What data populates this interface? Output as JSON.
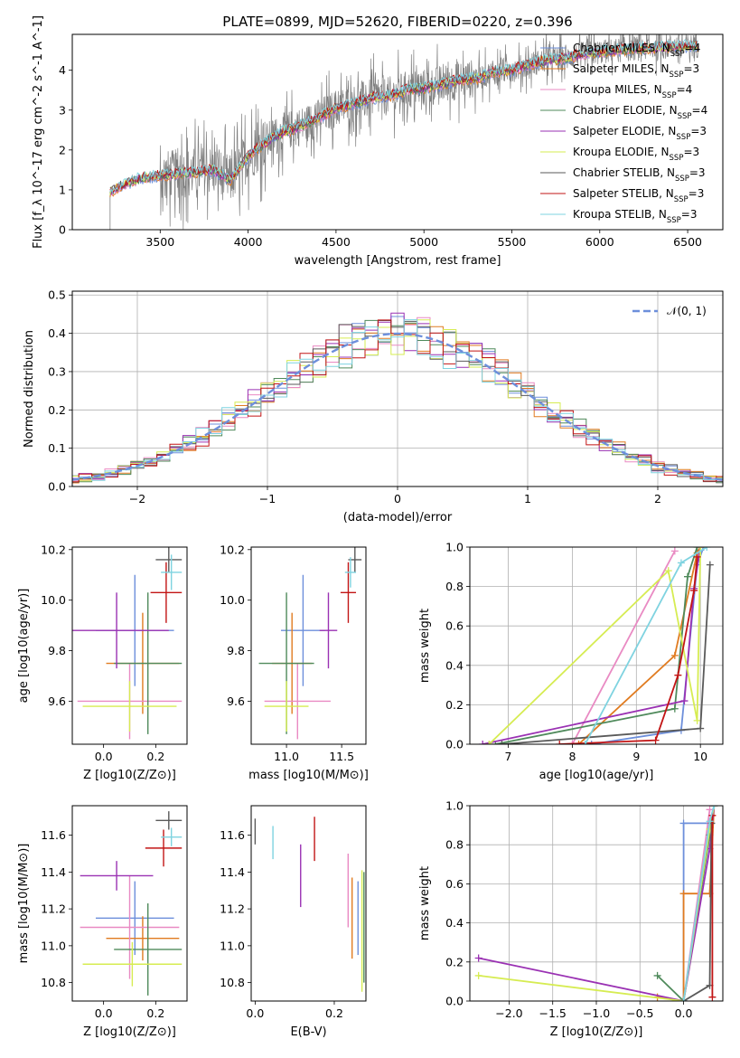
{
  "figure_title": "PLATE=0899, MJD=52620, FIBERID=0220, z=0.396",
  "models": [
    {
      "name": "Chabrier MILES",
      "nssp": "4",
      "color": "#6d8fdb"
    },
    {
      "name": "Salpeter MILES",
      "nssp": "3",
      "color": "#e07b20"
    },
    {
      "name": "Kroupa MILES",
      "nssp": "4",
      "color": "#e98ac3"
    },
    {
      "name": "Chabrier ELODIE",
      "nssp": "4",
      "color": "#4f8a5b"
    },
    {
      "name": "Salpeter ELODIE",
      "nssp": "3",
      "color": "#9a31b3"
    },
    {
      "name": "Kroupa ELODIE",
      "nssp": "3",
      "color": "#d6ec52"
    },
    {
      "name": "Chabrier STELIB",
      "nssp": "3",
      "color": "#5a5a5a"
    },
    {
      "name": "Salpeter STELIB",
      "nssp": "3",
      "color": "#c21515"
    },
    {
      "name": "Kroupa STELIB",
      "nssp": "3",
      "color": "#7fd3e0"
    }
  ],
  "chart_data": [
    {
      "id": "spectrum",
      "type": "line",
      "xlabel": "wavelength [Angstrom, rest frame]",
      "ylabel": "Flux [f_λ 10^-17 erg cm^-2 s^-1 A^-1]",
      "xlim": [
        3000,
        6700
      ],
      "ylim": [
        0,
        4.9
      ],
      "xticks": [
        3500,
        4000,
        4500,
        5000,
        5500,
        6000,
        6500
      ],
      "yticks": [
        0,
        1,
        2,
        3,
        4
      ],
      "data_color": "#808080",
      "data_xrange": [
        3215,
        6560
      ],
      "continuum": [
        [
          3215,
          0.95
        ],
        [
          3300,
          1.15
        ],
        [
          3400,
          1.3
        ],
        [
          3500,
          1.35
        ],
        [
          3600,
          1.4
        ],
        [
          3700,
          1.45
        ],
        [
          3800,
          1.5
        ],
        [
          3900,
          1.25
        ],
        [
          4000,
          1.85
        ],
        [
          4100,
          2.2
        ],
        [
          4200,
          2.45
        ],
        [
          4300,
          2.6
        ],
        [
          4400,
          2.8
        ],
        [
          4500,
          3.05
        ],
        [
          4600,
          3.15
        ],
        [
          4700,
          3.3
        ],
        [
          4800,
          3.35
        ],
        [
          4900,
          3.5
        ],
        [
          5000,
          3.55
        ],
        [
          5100,
          3.65
        ],
        [
          5200,
          3.75
        ],
        [
          5300,
          3.8
        ],
        [
          5400,
          3.95
        ],
        [
          5500,
          4.0
        ],
        [
          5600,
          4.15
        ],
        [
          5700,
          4.25
        ],
        [
          5800,
          4.3
        ],
        [
          5900,
          4.4
        ],
        [
          6000,
          4.45
        ],
        [
          6100,
          4.5
        ],
        [
          6200,
          4.55
        ],
        [
          6300,
          4.55
        ],
        [
          6400,
          4.6
        ],
        [
          6500,
          4.6
        ],
        [
          6560,
          4.6
        ]
      ],
      "legend": "upper right",
      "grid": false
    },
    {
      "id": "residuals",
      "type": "step",
      "xlabel": "(data-model)/error",
      "ylabel": "Normed distribution",
      "xlim": [
        -2.5,
        2.5
      ],
      "ylim": [
        0,
        0.51
      ],
      "xticks": [
        -2,
        -1,
        0,
        1,
        2
      ],
      "yticks": [
        0.0,
        0.1,
        0.2,
        0.3,
        0.4,
        0.5
      ],
      "ytick_labels": [
        "0.0",
        "0.1",
        "0.2",
        "0.3",
        "0.4",
        "0.5"
      ],
      "xtick_labels": [
        "−2",
        "−1",
        "0",
        "1",
        "2"
      ],
      "bin_width": 0.1,
      "reference_curve": {
        "name": "𝒩(0, 1)",
        "type": "gaussian",
        "mean": 0,
        "sigma": 1,
        "color": "#6d8fdb"
      },
      "legend": "upper right",
      "grid": true
    },
    {
      "id": "age-vs-Z",
      "type": "errorbar",
      "xlabel": "Z [log10(Z/Z⊙)]",
      "ylabel": "age [log10(age/yr)]",
      "xlim": [
        -0.12,
        0.32
      ],
      "ylim": [
        9.43,
        10.21
      ],
      "xticks": [
        0.0,
        0.2
      ],
      "yticks": [
        9.6,
        9.8,
        10.0,
        10.2
      ],
      "xtick_labels": [
        "0.0",
        "0.2"
      ],
      "ytick_labels": [
        "9.6",
        "9.8",
        "10.0",
        "10.2"
      ],
      "points": [
        {
          "model": 0,
          "x": 0.12,
          "xerr": 0.15,
          "y": 9.88,
          "yerr": 0.22
        },
        {
          "model": 1,
          "x": 0.15,
          "xerr": 0.14,
          "y": 9.75,
          "yerr": 0.2
        },
        {
          "model": 2,
          "x": 0.1,
          "xerr": 0.2,
          "y": 9.6,
          "yerr": 0.15
        },
        {
          "model": 3,
          "x": 0.17,
          "xerr": 0.13,
          "y": 9.75,
          "yerr": 0.28
        },
        {
          "model": 4,
          "x": 0.05,
          "xerr": 0.2,
          "y": 9.88,
          "yerr": 0.15
        },
        {
          "model": 5,
          "x": 0.1,
          "xerr": 0.18,
          "y": 9.58,
          "yerr": 0.1
        },
        {
          "model": 6,
          "x": 0.25,
          "xerr": 0.05,
          "y": 10.16,
          "yerr": 0.05
        },
        {
          "model": 7,
          "x": 0.24,
          "xerr": 0.06,
          "y": 10.03,
          "yerr": 0.12
        },
        {
          "model": 8,
          "x": 0.26,
          "xerr": 0.04,
          "y": 10.11,
          "yerr": 0.07
        }
      ]
    },
    {
      "id": "age-vs-mass",
      "type": "errorbar",
      "xlabel": "mass [log10(M/M⊙)]",
      "ylabel": "",
      "xlim": [
        10.68,
        11.72
      ],
      "ylim": [
        9.43,
        10.21
      ],
      "xticks": [
        11.0,
        11.5
      ],
      "yticks": [
        9.6,
        9.8,
        10.0,
        10.2
      ],
      "xtick_labels": [
        "11.0",
        "11.5"
      ],
      "ytick_labels": [
        "9.6",
        "9.8",
        "10.0",
        "10.2"
      ],
      "points": [
        {
          "model": 0,
          "x": 11.15,
          "xerr": 0.2,
          "y": 9.88,
          "yerr": 0.22
        },
        {
          "model": 1,
          "x": 11.05,
          "xerr": 0.18,
          "y": 9.75,
          "yerr": 0.2
        },
        {
          "model": 2,
          "x": 11.1,
          "xerr": 0.3,
          "y": 9.6,
          "yerr": 0.15
        },
        {
          "model": 3,
          "x": 11.0,
          "xerr": 0.25,
          "y": 9.75,
          "yerr": 0.28
        },
        {
          "model": 4,
          "x": 11.38,
          "xerr": 0.08,
          "y": 9.88,
          "yerr": 0.15
        },
        {
          "model": 5,
          "x": 11.0,
          "xerr": 0.2,
          "y": 9.58,
          "yerr": 0.1
        },
        {
          "model": 6,
          "x": 11.62,
          "xerr": 0.06,
          "y": 10.16,
          "yerr": 0.05
        },
        {
          "model": 7,
          "x": 11.56,
          "xerr": 0.07,
          "y": 10.03,
          "yerr": 0.12
        },
        {
          "model": 8,
          "x": 11.58,
          "xerr": 0.05,
          "y": 10.11,
          "yerr": 0.06
        }
      ]
    },
    {
      "id": "cumulative-age",
      "type": "line",
      "xlabel": "age [log10(age/yr)]",
      "ylabel": "mass weight",
      "xlim": [
        6.4,
        10.35
      ],
      "ylim": [
        0,
        1.0
      ],
      "xticks": [
        7,
        8,
        9,
        10
      ],
      "yticks": [
        0.0,
        0.2,
        0.4,
        0.6,
        0.8,
        1.0
      ],
      "ytick_labels": [
        "0.0",
        "0.2",
        "0.4",
        "0.6",
        "0.8",
        "1.0"
      ],
      "xtick_labels": [
        "7",
        "8",
        "9",
        "10"
      ],
      "grid": true,
      "series": [
        {
          "model": 0,
          "points": [
            [
              8.3,
              0.0
            ],
            [
              9.7,
              0.07
            ],
            [
              9.95,
              0.91
            ],
            [
              10.05,
              1.0
            ]
          ]
        },
        {
          "model": 1,
          "points": [
            [
              8.1,
              0.0
            ],
            [
              9.6,
              0.45
            ],
            [
              9.95,
              0.97
            ],
            [
              10.0,
              1.0
            ]
          ]
        },
        {
          "model": 2,
          "points": [
            [
              8.0,
              0.0
            ],
            [
              9.6,
              0.98
            ]
          ]
        },
        {
          "model": 3,
          "points": [
            [
              6.8,
              0.0
            ],
            [
              9.6,
              0.18
            ],
            [
              9.8,
              0.85
            ],
            [
              9.95,
              1.0
            ]
          ]
        },
        {
          "model": 4,
          "points": [
            [
              6.6,
              0.0
            ],
            [
              9.75,
              0.22
            ],
            [
              9.9,
              0.79
            ],
            [
              10.0,
              1.0
            ]
          ]
        },
        {
          "model": 5,
          "points": [
            [
              6.7,
              0.0
            ],
            [
              9.5,
              0.88
            ],
            [
              9.95,
              0.12
            ],
            [
              10.0,
              1.0
            ]
          ]
        },
        {
          "model": 6,
          "points": [
            [
              6.9,
              0.0
            ],
            [
              10.0,
              0.08
            ],
            [
              10.15,
              0.91
            ]
          ]
        },
        {
          "model": 7,
          "points": [
            [
              7.8,
              0.0
            ],
            [
              9.3,
              0.02
            ],
            [
              9.65,
              0.35
            ],
            [
              9.9,
              0.78
            ],
            [
              9.95,
              0.95
            ]
          ]
        },
        {
          "model": 8,
          "points": [
            [
              8.2,
              0.0
            ],
            [
              9.7,
              0.92
            ],
            [
              10.1,
              1.0
            ]
          ]
        }
      ]
    },
    {
      "id": "mass-vs-Z",
      "type": "errorbar",
      "xlabel": "Z [log10(Z/Z⊙)]",
      "ylabel": "mass [log10(M/M⊙)]",
      "xlim": [
        -0.12,
        0.32
      ],
      "ylim": [
        10.7,
        11.76
      ],
      "xticks": [
        0.0,
        0.2
      ],
      "yticks": [
        10.8,
        11.0,
        11.2,
        11.4,
        11.6
      ],
      "xtick_labels": [
        "0.0",
        "0.2"
      ],
      "ytick_labels": [
        "10.8",
        "11.0",
        "11.2",
        "11.4",
        "11.6"
      ],
      "points": [
        {
          "model": 0,
          "x": 0.12,
          "xerr": 0.15,
          "y": 11.15,
          "yerr": 0.2
        },
        {
          "model": 1,
          "x": 0.15,
          "xerr": 0.14,
          "y": 11.04,
          "yerr": 0.12
        },
        {
          "model": 2,
          "x": 0.1,
          "xerr": 0.19,
          "y": 11.1,
          "yerr": 0.28
        },
        {
          "model": 3,
          "x": 0.17,
          "xerr": 0.13,
          "y": 10.98,
          "yerr": 0.25
        },
        {
          "model": 4,
          "x": 0.05,
          "xerr": 0.14,
          "y": 11.38,
          "yerr": 0.08
        },
        {
          "model": 5,
          "x": 0.11,
          "xerr": 0.19,
          "y": 10.9,
          "yerr": 0.12
        },
        {
          "model": 6,
          "x": 0.25,
          "xerr": 0.05,
          "y": 11.68,
          "yerr": 0.05
        },
        {
          "model": 7,
          "x": 0.23,
          "xerr": 0.07,
          "y": 11.53,
          "yerr": 0.1
        },
        {
          "model": 8,
          "x": 0.26,
          "xerr": 0.04,
          "y": 11.59,
          "yerr": 0.05
        }
      ]
    },
    {
      "id": "mass-vs-EBV",
      "type": "errorbar",
      "xlabel": "E(B-V)",
      "ylabel": "",
      "xlim": [
        -0.01,
        0.28
      ],
      "ylim": [
        10.7,
        11.76
      ],
      "xticks": [
        0.0,
        0.2
      ],
      "yticks": [
        10.8,
        11.0,
        11.2,
        11.4,
        11.6
      ],
      "xtick_labels": [
        "0.0",
        "0.2"
      ],
      "ytick_labels": [
        "10.8",
        "11.0",
        "11.2",
        "11.4",
        "11.6"
      ],
      "points": [
        {
          "model": 0,
          "x": 0.26,
          "xerr": 0.0,
          "y": 11.15,
          "yerr": 0.2
        },
        {
          "model": 1,
          "x": 0.245,
          "xerr": 0.0,
          "y": 11.15,
          "yerr": 0.22
        },
        {
          "model": 2,
          "x": 0.235,
          "xerr": 0.0,
          "y": 11.3,
          "yerr": 0.2
        },
        {
          "model": 3,
          "x": 0.275,
          "xerr": 0.0,
          "y": 11.1,
          "yerr": 0.3
        },
        {
          "model": 4,
          "x": 0.115,
          "xerr": 0.0,
          "y": 11.38,
          "yerr": 0.17
        },
        {
          "model": 5,
          "x": 0.27,
          "xerr": 0.0,
          "y": 11.08,
          "yerr": 0.33
        },
        {
          "model": 6,
          "x": 0.0,
          "xerr": 0.0,
          "y": 11.62,
          "yerr": 0.07
        },
        {
          "model": 7,
          "x": 0.15,
          "xerr": 0.0,
          "y": 11.58,
          "yerr": 0.12
        },
        {
          "model": 8,
          "x": 0.045,
          "xerr": 0.0,
          "y": 11.56,
          "yerr": 0.09
        }
      ]
    },
    {
      "id": "cumulative-Z",
      "type": "line",
      "xlabel": "Z [log10(Z/Z⊙)]",
      "ylabel": "mass weight",
      "xlim": [
        -2.45,
        0.45
      ],
      "ylim": [
        0,
        1.0
      ],
      "xticks": [
        -2.0,
        -1.5,
        -1.0,
        -0.5,
        0.0
      ],
      "yticks": [
        0.0,
        0.2,
        0.4,
        0.6,
        0.8,
        1.0
      ],
      "xtick_labels": [
        "−2.0",
        "−1.5",
        "−1.0",
        "−0.5",
        "0.0"
      ],
      "ytick_labels": [
        "0.0",
        "0.2",
        "0.4",
        "0.6",
        "0.8",
        "1.0"
      ],
      "grid": true,
      "series": [
        {
          "model": 0,
          "points": [
            [
              0.0,
              0.0
            ],
            [
              0.0,
              0.91
            ],
            [
              0.3,
              0.91
            ],
            [
              0.35,
              1.0
            ]
          ]
        },
        {
          "model": 1,
          "points": [
            [
              -0.3,
              0.02
            ],
            [
              0.0,
              0.0
            ],
            [
              0.0,
              0.55
            ],
            [
              0.3,
              0.55
            ],
            [
              0.35,
              1.0
            ]
          ]
        },
        {
          "model": 2,
          "points": [
            [
              0.0,
              0.0
            ],
            [
              0.3,
              0.98
            ]
          ]
        },
        {
          "model": 3,
          "points": [
            [
              -0.3,
              0.13
            ],
            [
              0.0,
              0.0
            ],
            [
              0.3,
              0.85
            ]
          ]
        },
        {
          "model": 4,
          "points": [
            [
              -2.35,
              0.22
            ],
            [
              0.0,
              0.0
            ],
            [
              0.3,
              0.78
            ],
            [
              0.35,
              1.0
            ]
          ]
        },
        {
          "model": 5,
          "points": [
            [
              -2.35,
              0.13
            ],
            [
              0.0,
              0.0
            ],
            [
              0.3,
              0.88
            ],
            [
              0.35,
              1.0
            ]
          ]
        },
        {
          "model": 6,
          "points": [
            [
              0.0,
              0.0
            ],
            [
              0.3,
              0.08
            ],
            [
              0.32,
              0.91
            ]
          ]
        },
        {
          "model": 7,
          "points": [
            [
              0.33,
              0.02
            ],
            [
              0.33,
              0.95
            ]
          ]
        },
        {
          "model": 8,
          "points": [
            [
              0.0,
              0.0
            ],
            [
              0.3,
              0.92
            ],
            [
              0.35,
              1.0
            ]
          ]
        }
      ]
    }
  ]
}
